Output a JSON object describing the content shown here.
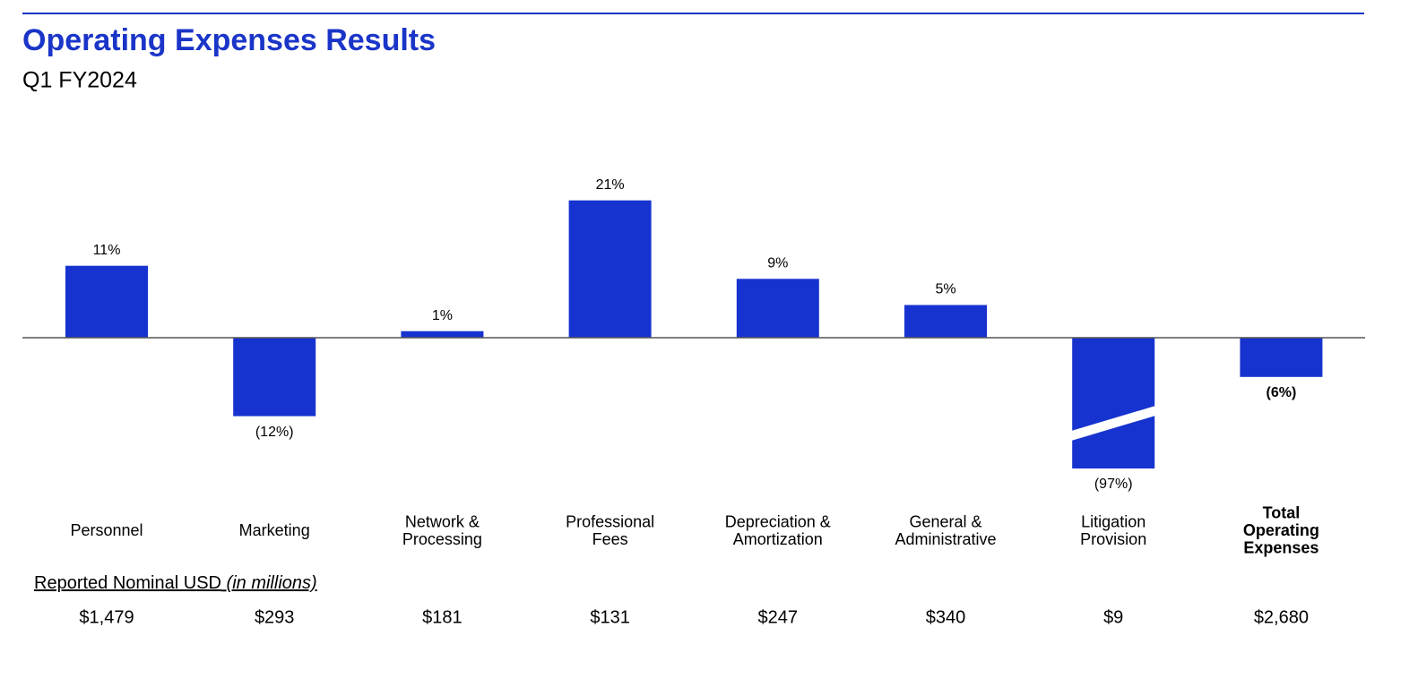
{
  "chart_data": {
    "type": "bar",
    "title": "Operating Expenses Results",
    "subtitle": "Q1 FY2024",
    "categories": [
      "Personnel",
      "Marketing",
      "Network &\nProcessing",
      "Professional\nFees",
      "Depreciation &\nAmortization",
      "General &\nAdministrative",
      "Litigation\nProvision",
      "Total\nOperating\nExpenses"
    ],
    "values": [
      11,
      -12,
      1,
      21,
      9,
      5,
      -97,
      -6
    ],
    "value_labels": [
      "11%",
      "(12%)",
      "1%",
      "21%",
      "9%",
      "5%",
      "(97%)",
      "(6%)"
    ],
    "color": "#1733cf",
    "nominal_label": "Reported Nominal USD",
    "nominal_unit": "(in millions)",
    "nominal_values": [
      1479,
      293,
      181,
      131,
      247,
      340,
      9,
      2680
    ],
    "nominal_labels": [
      "$1,479",
      "$293",
      "$181",
      "$131",
      "$247",
      "$340",
      "$9",
      "$2,680"
    ]
  }
}
